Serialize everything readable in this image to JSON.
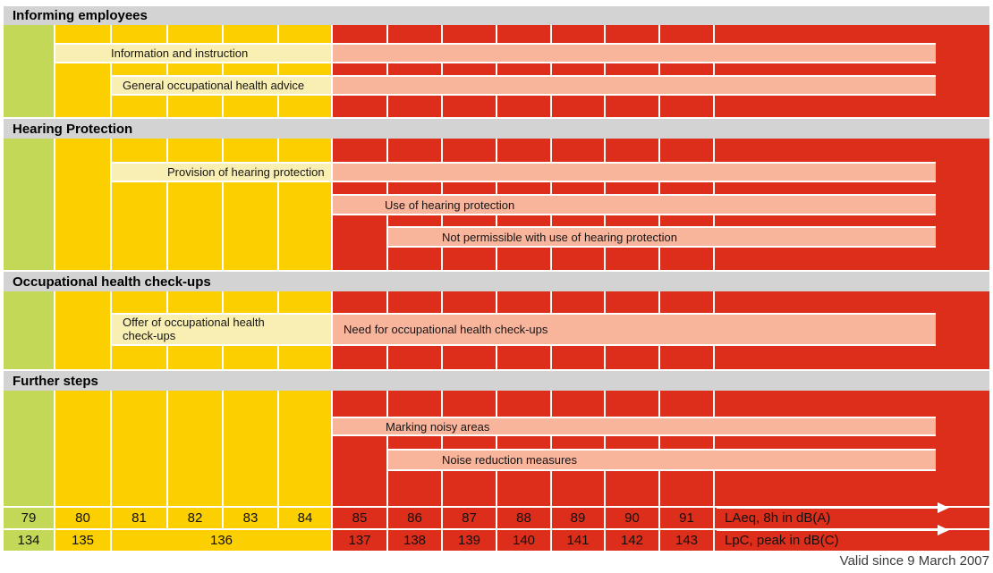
{
  "sections": [
    {
      "title": "Informing employees",
      "bands": [
        {
          "label": "Information and instruction"
        },
        {
          "label": "General occupational health advice"
        }
      ]
    },
    {
      "title": "Hearing Protection",
      "bands": [
        {
          "label": "Provision of hearing protection"
        },
        {
          "label": "Use of hearing protection"
        },
        {
          "label": "Not permissible with use of hearing protection"
        }
      ]
    },
    {
      "title": "Occupational health check-ups",
      "bands": [
        {
          "label": "Offer of occupational health check-ups"
        },
        {
          "label": "Need for occupational health check-ups"
        }
      ]
    },
    {
      "title": "Further steps",
      "bands": [
        {
          "label": "Marking noisy areas"
        },
        {
          "label": "Noise reduction measures"
        }
      ]
    }
  ],
  "axis": {
    "dba": {
      "values": [
        "79",
        "80",
        "81",
        "82",
        "83",
        "84",
        "85",
        "86",
        "87",
        "88",
        "89",
        "90",
        "91"
      ],
      "label": "LAeq, 8h in dB(A)"
    },
    "dbc": {
      "values": [
        "134",
        "135",
        "136",
        "137",
        "138",
        "139",
        "140",
        "141",
        "142",
        "143"
      ],
      "label": "LpC, peak in dB(C)"
    }
  },
  "footnote": "Valid since 9 March 2007",
  "colors": {
    "green": "#c3d857",
    "yellow": "#fcd000",
    "light_yellow": "#faefb2",
    "red": "#dd2e1b",
    "salmon": "#f9b49c",
    "header_gray": "#d3d3d4"
  },
  "chart_data": {
    "type": "table",
    "title": "Noise protection measures by exposure level",
    "x_axes": [
      {
        "label": "LAeq, 8h in dB(A)",
        "ticks": [
          79,
          80,
          81,
          82,
          83,
          84,
          85,
          86,
          87,
          88,
          89,
          90,
          91
        ],
        "open_ended_right": true
      },
      {
        "label": "LpC, peak in dB(C)",
        "ticks": [
          134,
          135,
          136,
          137,
          138,
          139,
          140,
          141,
          142,
          143
        ],
        "open_ended_right": true,
        "note": "136 spans 81-84 dB(A)"
      }
    ],
    "zones": [
      {
        "color": "green",
        "dba": [
          79,
          79
        ],
        "dbc": [
          134,
          134
        ]
      },
      {
        "color": "yellow",
        "dba": [
          80,
          84
        ],
        "dbc": [
          135,
          136
        ]
      },
      {
        "color": "red",
        "dba": [
          85,
          91
        ],
        "dbc": [
          137,
          143
        ]
      }
    ],
    "measures": [
      {
        "section": "Informing employees",
        "label": "Information and instruction",
        "from_dba": 80,
        "open_ended": true
      },
      {
        "section": "Informing employees",
        "label": "General occupational health advice",
        "from_dba": 81,
        "open_ended": true
      },
      {
        "section": "Hearing Protection",
        "label": "Provision of hearing protection",
        "from_dba": 81,
        "open_ended": true
      },
      {
        "section": "Hearing Protection",
        "label": "Use of hearing protection",
        "from_dba": 85,
        "open_ended": true
      },
      {
        "section": "Hearing Protection",
        "label": "Not permissible with use of hearing protection",
        "from_dba": 86,
        "open_ended": true
      },
      {
        "section": "Occupational health check-ups",
        "label": "Offer of occupational health check-ups",
        "from_dba": 81,
        "to_dba": 84
      },
      {
        "section": "Occupational health check-ups",
        "label": "Need for occupational health check-ups",
        "from_dba": 85,
        "open_ended": true
      },
      {
        "section": "Further steps",
        "label": "Marking noisy areas",
        "from_dba": 85,
        "open_ended": true
      },
      {
        "section": "Further steps",
        "label": "Noise reduction measures",
        "from_dba": 86,
        "open_ended": true
      }
    ],
    "footnote": "Valid since 9 March 2007"
  }
}
